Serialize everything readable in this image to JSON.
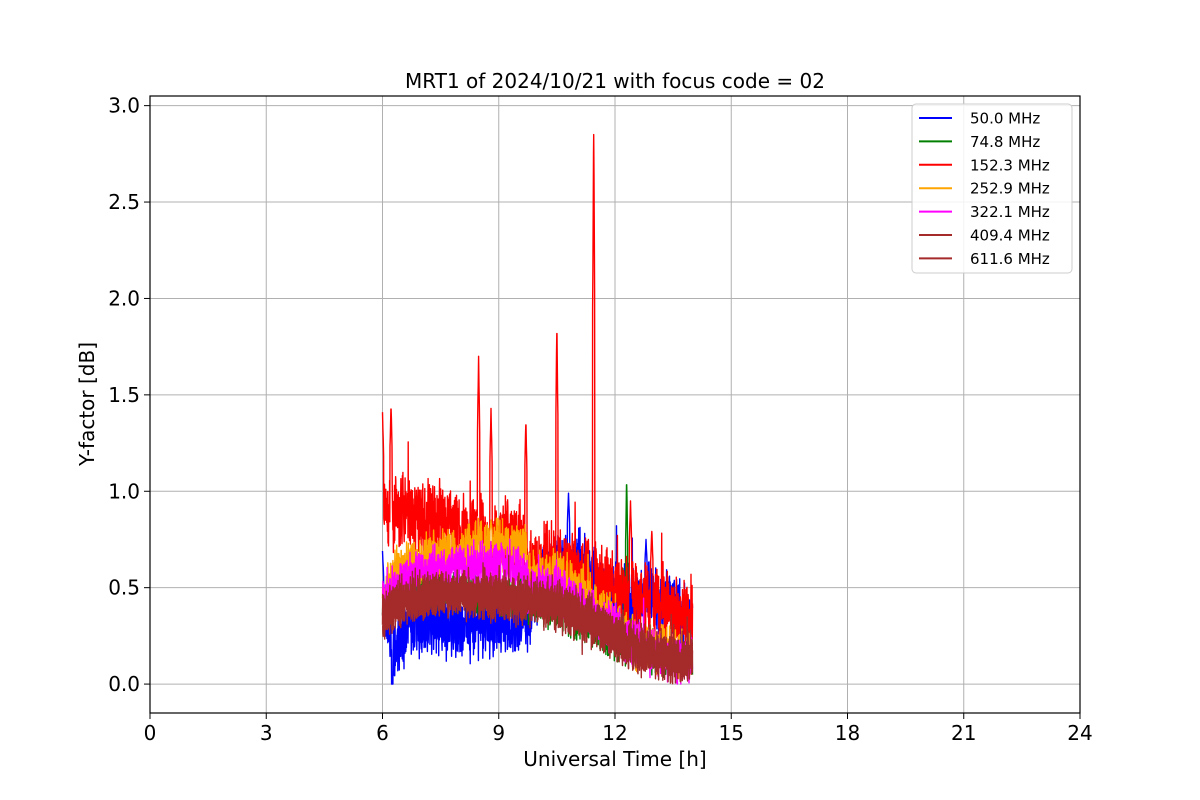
{
  "chart_data": {
    "type": "line",
    "title": "MRT1 of 2024/10/21 with focus code = 02",
    "xlabel": "Universal Time [h]",
    "ylabel": "Y-factor [dB]",
    "xlim": [
      0,
      24
    ],
    "ylim": [
      -0.15,
      3.05
    ],
    "xticks": [
      0,
      3,
      6,
      9,
      12,
      15,
      18,
      21,
      24
    ],
    "xtick_labels": [
      "0",
      "3",
      "6",
      "9",
      "12",
      "15",
      "18",
      "21",
      "24"
    ],
    "yticks": [
      0.0,
      0.5,
      1.0,
      1.5,
      2.0,
      2.5,
      3.0
    ],
    "ytick_labels": [
      "0.0",
      "0.5",
      "1.0",
      "1.5",
      "2.0",
      "2.5",
      "3.0"
    ],
    "grid": true,
    "legend_position": "top-right",
    "series": [
      {
        "name": " 50.0 MHz",
        "color": "#0000ff",
        "seed": 11,
        "noise": 0.2,
        "base": [
          [
            6.0,
            0.4
          ],
          [
            6.3,
            0.2
          ],
          [
            6.8,
            0.3
          ],
          [
            7.5,
            0.3
          ],
          [
            8.5,
            0.3
          ],
          [
            9.7,
            0.33
          ],
          [
            10.2,
            0.55
          ],
          [
            11.0,
            0.65
          ],
          [
            11.8,
            0.45
          ],
          [
            12.5,
            0.45
          ],
          [
            13.0,
            0.45
          ],
          [
            14.0,
            0.35
          ]
        ],
        "spikes": [
          [
            6.0,
            0.69
          ],
          [
            6.25,
            0.0
          ],
          [
            10.8,
            0.99
          ],
          [
            12.8,
            0.75
          ]
        ]
      },
      {
        "name": " 74.8 MHz",
        "color": "#008000",
        "seed": 23,
        "noise": 0.14,
        "base": [
          [
            6.0,
            0.4
          ],
          [
            6.5,
            0.48
          ],
          [
            7.5,
            0.5
          ],
          [
            8.5,
            0.48
          ],
          [
            9.7,
            0.45
          ],
          [
            10.5,
            0.4
          ],
          [
            11.5,
            0.3
          ],
          [
            12.5,
            0.2
          ],
          [
            13.2,
            0.15
          ],
          [
            14.0,
            0.15
          ]
        ],
        "spikes": [
          [
            12.3,
            1.07
          ],
          [
            12.2,
            0.6
          ]
        ]
      },
      {
        "name": "152.3 MHz",
        "color": "#ff0000",
        "seed": 37,
        "noise": 0.24,
        "base": [
          [
            6.0,
            0.88
          ],
          [
            6.5,
            0.9
          ],
          [
            7.5,
            0.82
          ],
          [
            8.5,
            0.78
          ],
          [
            9.7,
            0.76
          ],
          [
            9.75,
            0.62
          ],
          [
            10.5,
            0.65
          ],
          [
            11.5,
            0.55
          ],
          [
            12.5,
            0.45
          ],
          [
            13.5,
            0.4
          ],
          [
            14.0,
            0.35
          ]
        ],
        "spikes": [
          [
            6.0,
            1.41
          ],
          [
            6.22,
            1.45
          ],
          [
            8.48,
            1.7
          ],
          [
            8.8,
            1.43
          ],
          [
            9.7,
            1.37
          ],
          [
            10.5,
            1.87
          ],
          [
            11.45,
            2.9
          ],
          [
            12.4,
            0.95
          ],
          [
            12.95,
            0.8
          ]
        ]
      },
      {
        "name": "252.9 MHz",
        "color": "#ffa500",
        "seed": 53,
        "noise": 0.16,
        "base": [
          [
            6.0,
            0.48
          ],
          [
            6.5,
            0.6
          ],
          [
            7.5,
            0.68
          ],
          [
            8.5,
            0.72
          ],
          [
            9.7,
            0.7
          ],
          [
            9.75,
            0.55
          ],
          [
            10.5,
            0.6
          ],
          [
            11.5,
            0.42
          ],
          [
            12.5,
            0.22
          ],
          [
            13.5,
            0.15
          ],
          [
            14.0,
            0.15
          ]
        ],
        "spikes": [
          [
            8.8,
            0.85
          ]
        ]
      },
      {
        "name": "322.1 MHz",
        "color": "#ff00ff",
        "seed": 71,
        "noise": 0.15,
        "base": [
          [
            6.0,
            0.42
          ],
          [
            6.5,
            0.55
          ],
          [
            7.5,
            0.6
          ],
          [
            8.5,
            0.62
          ],
          [
            9.7,
            0.6
          ],
          [
            9.75,
            0.48
          ],
          [
            10.5,
            0.5
          ],
          [
            11.5,
            0.36
          ],
          [
            12.5,
            0.2
          ],
          [
            13.5,
            0.12
          ],
          [
            14.0,
            0.12
          ]
        ],
        "spikes": []
      },
      {
        "name": "409.4 MHz",
        "color": "#a52a2a",
        "seed": 89,
        "noise": 0.15,
        "base": [
          [
            6.0,
            0.35
          ],
          [
            6.5,
            0.44
          ],
          [
            7.5,
            0.47
          ],
          [
            8.5,
            0.47
          ],
          [
            9.7,
            0.44
          ],
          [
            10.5,
            0.42
          ],
          [
            11.5,
            0.32
          ],
          [
            12.5,
            0.2
          ],
          [
            13.5,
            0.14
          ],
          [
            14.0,
            0.14
          ]
        ],
        "spikes": []
      },
      {
        "name": "611.6 MHz",
        "color": "#a52a2a",
        "seed": 97,
        "noise": 0.14,
        "base": [
          [
            6.0,
            0.33
          ],
          [
            6.5,
            0.42
          ],
          [
            7.5,
            0.46
          ],
          [
            8.5,
            0.45
          ],
          [
            9.7,
            0.42
          ],
          [
            10.5,
            0.4
          ],
          [
            11.5,
            0.3
          ],
          [
            12.5,
            0.18
          ],
          [
            13.5,
            0.12
          ],
          [
            14.0,
            0.12
          ]
        ],
        "spikes": []
      }
    ]
  }
}
